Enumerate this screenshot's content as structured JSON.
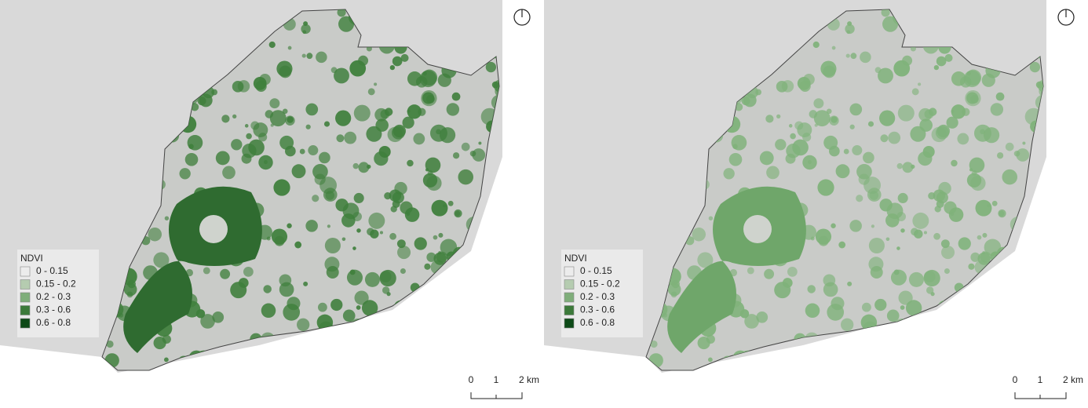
{
  "panels": [
    {
      "park_color": "#2f6b30",
      "patch_color": "#3f7f3c",
      "legend": {
        "title": "NDVI",
        "items": [
          {
            "label": "0 - 0.15",
            "color": "#ececec"
          },
          {
            "label": "0.15 - 0.2",
            "color": "#b5ccb0"
          },
          {
            "label": "0.2 - 0.3",
            "color": "#7fae7a"
          },
          {
            "label": "0.3 - 0.6",
            "color": "#3c7a3a"
          },
          {
            "label": "0.6 - 0.8",
            "color": "#0d4a17"
          }
        ]
      },
      "scale_bar": {
        "labels": [
          "0",
          "1",
          "2 km"
        ]
      }
    },
    {
      "park_color": "#6fa66a",
      "patch_color": "#7fb27a",
      "legend": {
        "title": "NDVI",
        "items": [
          {
            "label": "0 - 0.15",
            "color": "#ececec"
          },
          {
            "label": "0.15 - 0.2",
            "color": "#b5ccb0"
          },
          {
            "label": "0.2 - 0.3",
            "color": "#7fae7a"
          },
          {
            "label": "0.3 - 0.6",
            "color": "#3c7a3a"
          },
          {
            "label": "0.6 - 0.8",
            "color": "#0d4a17"
          }
        ]
      },
      "scale_bar": {
        "labels": [
          "0",
          "1",
          "2 km"
        ]
      }
    }
  ]
}
